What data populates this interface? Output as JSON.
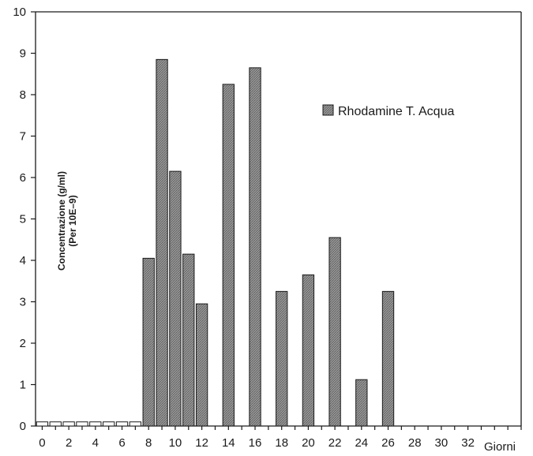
{
  "chart_data": {
    "type": "bar",
    "ylabel_lines": [
      "Concentrazione (g/ml)",
      "(Per 10E–9)"
    ],
    "xlabel": "Giorni",
    "ylim": [
      0,
      10
    ],
    "xlim": [
      -0.5,
      36
    ],
    "yticks": [
      0,
      1,
      2,
      3,
      4,
      5,
      6,
      7,
      8,
      9,
      10
    ],
    "xticks": [
      0,
      2,
      4,
      6,
      8,
      10,
      12,
      14,
      16,
      18,
      20,
      22,
      24,
      26,
      28,
      30,
      32
    ],
    "legend": {
      "label": "Rhodamine T. Acqua",
      "position": "top-right"
    },
    "series": [
      {
        "name": "Rhodamine T. Acqua",
        "color": "#8a8a8a",
        "baseline_color": "#ffffff",
        "x": [
          0,
          1,
          2,
          3,
          4,
          5,
          6,
          7,
          8,
          9,
          10,
          11,
          12,
          14,
          16,
          18,
          20,
          22,
          24,
          26
        ],
        "values": [
          0.1,
          0.1,
          0.1,
          0.1,
          0.1,
          0.1,
          0.1,
          0.1,
          4.05,
          8.85,
          6.15,
          4.15,
          2.95,
          8.25,
          8.65,
          3.25,
          3.65,
          4.55,
          1.12,
          3.25
        ]
      }
    ]
  }
}
